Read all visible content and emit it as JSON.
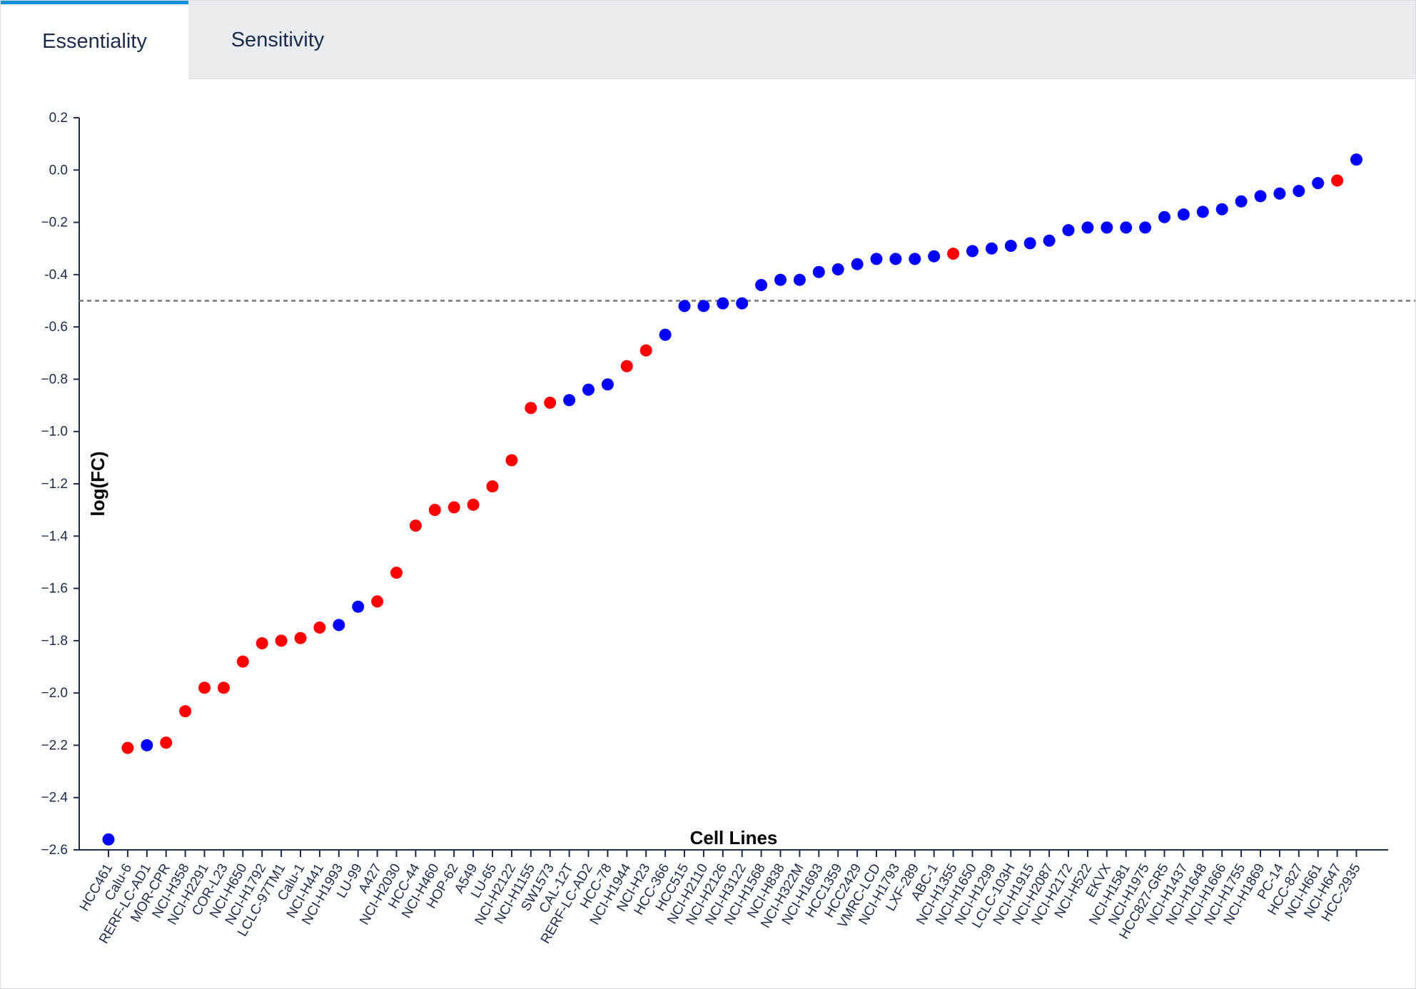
{
  "tabs": [
    {
      "label": "Essentiality",
      "active": true
    },
    {
      "label": "Sensitivity",
      "active": false
    }
  ],
  "colors": {
    "accent": "#0a8fd8",
    "blue": "#0000ff",
    "red": "#ff0000",
    "threshold": "#777777"
  },
  "chart_data": {
    "type": "scatter",
    "xlabel": "Cell Lines",
    "ylabel": "log(FC)",
    "ylim": [
      -2.6,
      0.2
    ],
    "yticks": [
      0.2,
      0.0,
      -0.2,
      -0.4,
      -0.6,
      -0.8,
      -1.0,
      -1.2,
      -1.4,
      -1.6,
      -1.8,
      -2.0,
      -2.2,
      -2.4,
      -2.6
    ],
    "ytick_labels": [
      "0.2",
      "0.0",
      "−0.2",
      "-0.4",
      "-0.6",
      "−0.8",
      "−1.0",
      "−1.2",
      "−1.4",
      "−1.6",
      "−1.8",
      "−2.0",
      "−2.2",
      "−2.4",
      "−2.6"
    ],
    "threshold": -0.5,
    "grid": false,
    "categories": [
      "HCC461",
      "Calu-6",
      "RERF-LC-AD1",
      "MOR-CPR",
      "NCI-H358",
      "NCI-H2291",
      "COR-L23",
      "NCI-H650",
      "NCI-H1792",
      "LCLC-97TM1",
      "Calu-1",
      "NCI-H441",
      "NCI-H1993",
      "LU-99",
      "A427",
      "NCI-H2030",
      "HCC-44",
      "NCI-H460",
      "HOP-62",
      "A549",
      "LU-65",
      "NCI-H2122",
      "NCI-H1155",
      "SW1573",
      "CAL-12T",
      "RERF-LC-AD2",
      "HCC-78",
      "NCI-H1944",
      "NCI-H23",
      "HCC-366",
      "HCC515",
      "NCI-H2110",
      "NCI-H2126",
      "NCI-H3122",
      "NCI-H1568",
      "NCI-H838",
      "NCI-H322M",
      "NCI-H1693",
      "HCC1359",
      "HCC2429",
      "VMRC-LCD",
      "NCI-H1793",
      "LXF-289",
      "ABC-1",
      "NCI-H1355",
      "NCI-H1650",
      "NCI-H1299",
      "LCLC-103H",
      "NCI-H1915",
      "NCI-H2087",
      "NCI-H2172",
      "NCI-H522",
      "EKVX",
      "NCI-H1581",
      "NCI-H1975",
      "HCC827-GR5",
      "NCI-H1437",
      "NCI-H1648",
      "NCI-H1666",
      "NCI-H1755",
      "NCI-H1869",
      "PC-14",
      "HCC-827",
      "NCI-H661",
      "NCI-H647",
      "HCC-2935"
    ],
    "values": [
      -2.56,
      -2.21,
      -2.2,
      -2.19,
      -2.07,
      -1.98,
      -1.98,
      -1.88,
      -1.81,
      -1.8,
      -1.79,
      -1.75,
      -1.74,
      -1.67,
      -1.65,
      -1.54,
      -1.36,
      -1.3,
      -1.29,
      -1.28,
      -1.21,
      -1.11,
      -0.91,
      -0.89,
      -0.88,
      -0.84,
      -0.82,
      -0.75,
      -0.69,
      -0.63,
      -0.52,
      -0.52,
      -0.51,
      -0.51,
      -0.44,
      -0.42,
      -0.42,
      -0.39,
      -0.38,
      -0.36,
      -0.34,
      -0.34,
      -0.34,
      -0.33,
      -0.32,
      -0.31,
      -0.3,
      -0.29,
      -0.28,
      -0.27,
      -0.23,
      -0.22,
      -0.22,
      -0.22,
      -0.22,
      -0.18,
      -0.17,
      -0.16,
      -0.15,
      -0.12,
      -0.1,
      -0.09,
      -0.08,
      -0.05,
      -0.04,
      0.04
    ],
    "point_colors": [
      "blue",
      "red",
      "blue",
      "red",
      "red",
      "red",
      "red",
      "red",
      "red",
      "red",
      "red",
      "red",
      "blue",
      "blue",
      "red",
      "red",
      "red",
      "red",
      "red",
      "red",
      "red",
      "red",
      "red",
      "red",
      "blue",
      "blue",
      "blue",
      "red",
      "red",
      "blue",
      "blue",
      "blue",
      "blue",
      "blue",
      "blue",
      "blue",
      "blue",
      "blue",
      "blue",
      "blue",
      "blue",
      "blue",
      "blue",
      "blue",
      "red",
      "blue",
      "blue",
      "blue",
      "blue",
      "blue",
      "blue",
      "blue",
      "blue",
      "blue",
      "blue",
      "blue",
      "blue",
      "blue",
      "blue",
      "blue",
      "blue",
      "blue",
      "blue",
      "blue",
      "red",
      "blue"
    ]
  }
}
